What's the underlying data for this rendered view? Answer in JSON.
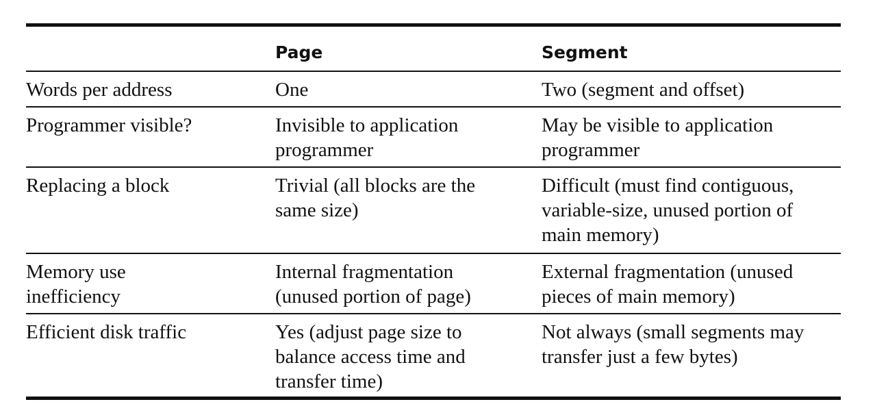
{
  "table": {
    "headers": [
      "",
      "Page",
      "Segment"
    ],
    "rows": [
      [
        "Words per address",
        "One",
        "Two (segment and offset)"
      ],
      [
        "Programmer visible?",
        "Invisible to application\nprogrammer",
        "May be visible to application\nprogrammer"
      ],
      [
        "Replacing a block",
        "Trivial (all blocks are the\nsame size)",
        "Difficult (must find contiguous,\nvariable-size, unused portion of\nmain memory)"
      ],
      [
        "Memory use\ninefficiency",
        "Internal fragmentation\n(unused portion of page)",
        "External fragmentation (unused\npieces of main memory)"
      ],
      [
        "Efficient disk traffic",
        "Yes (adjust page size to\nbalance access time and\ntransfer time)",
        "Not always (small segments may\ntransfer just a few bytes)"
      ]
    ]
  }
}
